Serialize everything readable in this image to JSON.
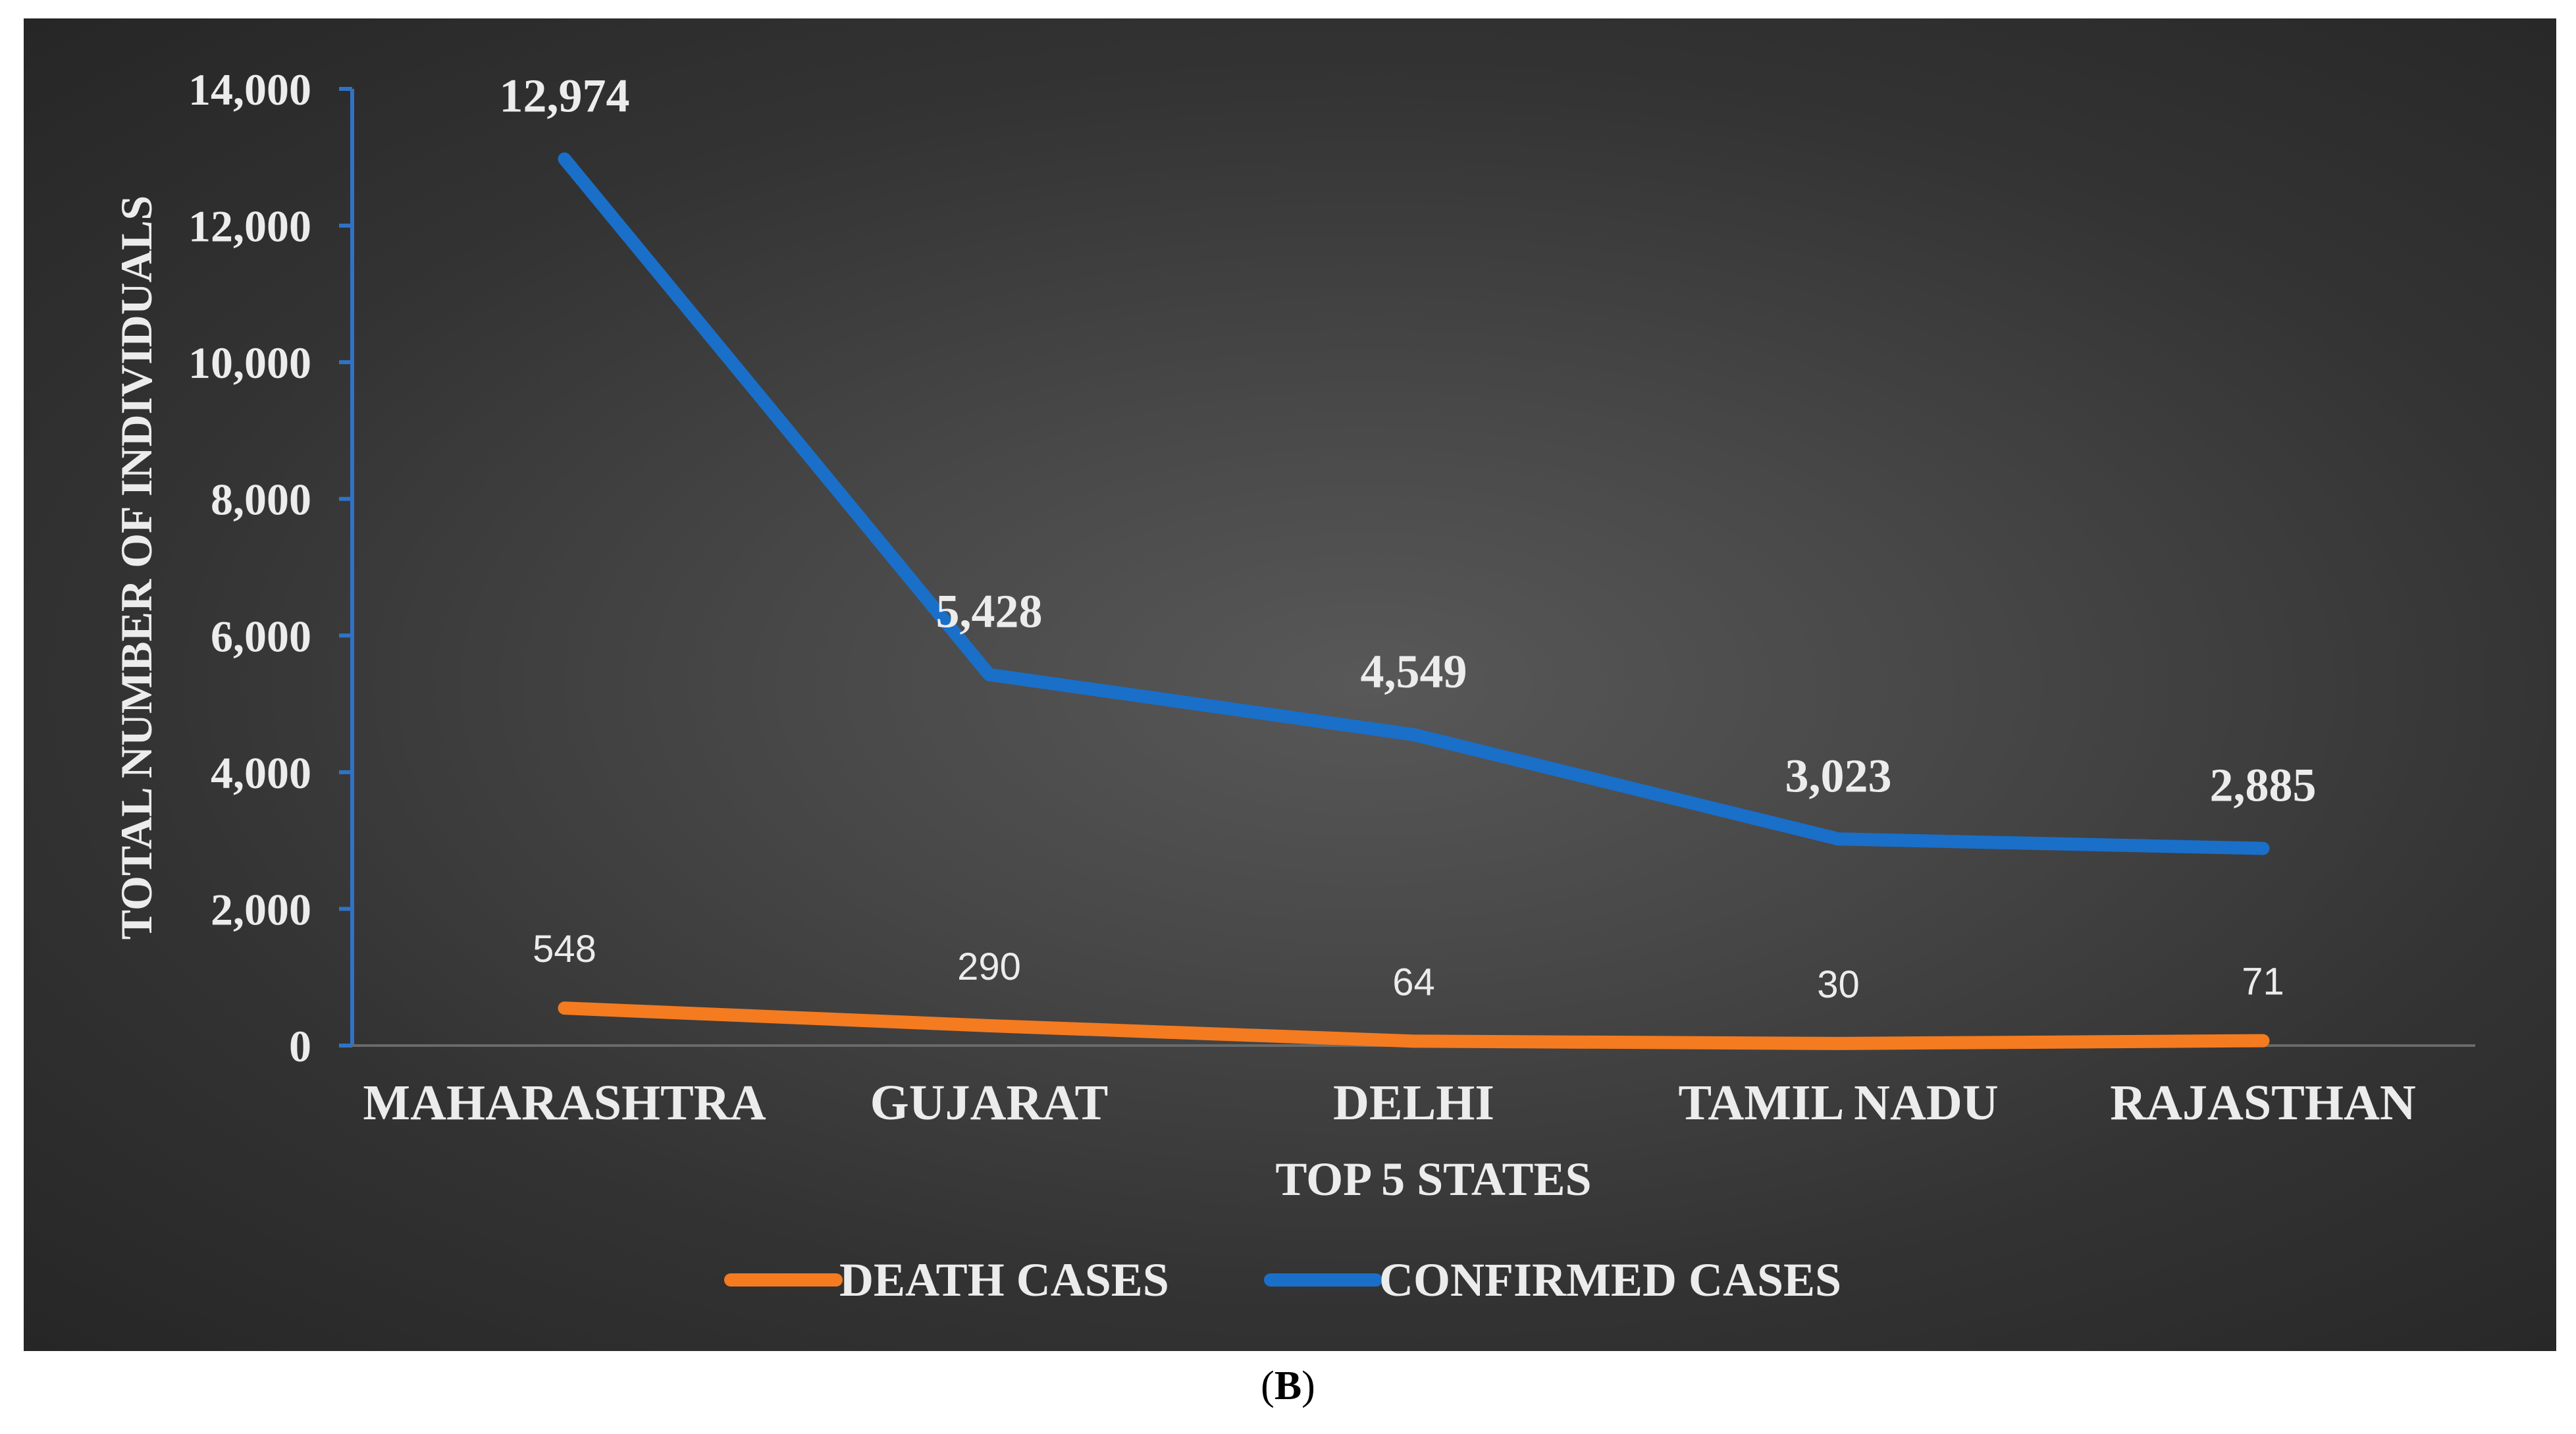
{
  "chart_data": {
    "type": "line",
    "title": "",
    "xlabel": "TOP 5 STATES",
    "ylabel": "TOTAL NUMBER OF INDIVIDUALS",
    "categories": [
      "MAHARASHTRA",
      "GUJARAT",
      "DELHI",
      "TAMIL NADU",
      "RAJASTHAN"
    ],
    "ylim": [
      0,
      14000
    ],
    "yticks": [
      0,
      2000,
      4000,
      6000,
      8000,
      10000,
      12000,
      14000
    ],
    "ytick_labels": [
      "0",
      "2,000",
      "4,000",
      "6,000",
      "8,000",
      "10,000",
      "12,000",
      "14,000"
    ],
    "grid": false,
    "legend_position": "bottom",
    "series": [
      {
        "name": "DEATH CASES",
        "color": "#f47b20",
        "values": [
          548,
          290,
          64,
          30,
          71
        ],
        "labels": [
          "548",
          "290",
          "64",
          "30",
          "71"
        ]
      },
      {
        "name": "CONFIRMED CASES",
        "color": "#1a6fc9",
        "values": [
          12974,
          5428,
          4549,
          3023,
          2885
        ],
        "labels": [
          "12,974",
          "5,428",
          "4,549",
          "3,023",
          "2,885"
        ]
      }
    ],
    "axis_color": "#2f73c7"
  },
  "caption": {
    "open": "(",
    "letter": "B",
    "close": ")"
  }
}
